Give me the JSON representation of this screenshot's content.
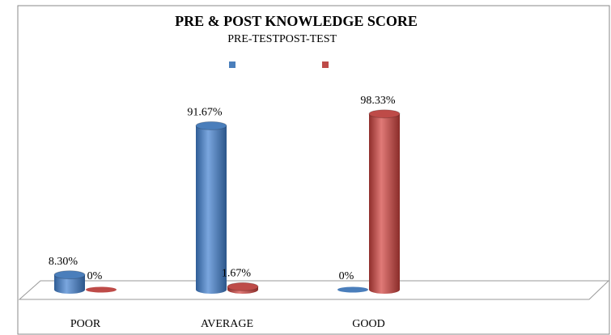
{
  "chart_data": {
    "type": "bar3d",
    "title": "PRE & POST KNOWLEDGE SCORE",
    "categories": [
      "POOR",
      "AVERAGE",
      "GOOD"
    ],
    "series": [
      {
        "name": "PRE-TEST",
        "color": "#4a7ebb",
        "values": [
          8.3,
          91.67,
          0
        ],
        "value_labels": [
          "8.30%",
          "91.67%",
          "0%"
        ]
      },
      {
        "name": "POST-TEST",
        "color": "#be4b48",
        "values": [
          0,
          1.67,
          98.33
        ],
        "value_labels": [
          "0%",
          "1.67%",
          "98.33%"
        ]
      }
    ],
    "ylim": [
      0,
      100
    ]
  }
}
